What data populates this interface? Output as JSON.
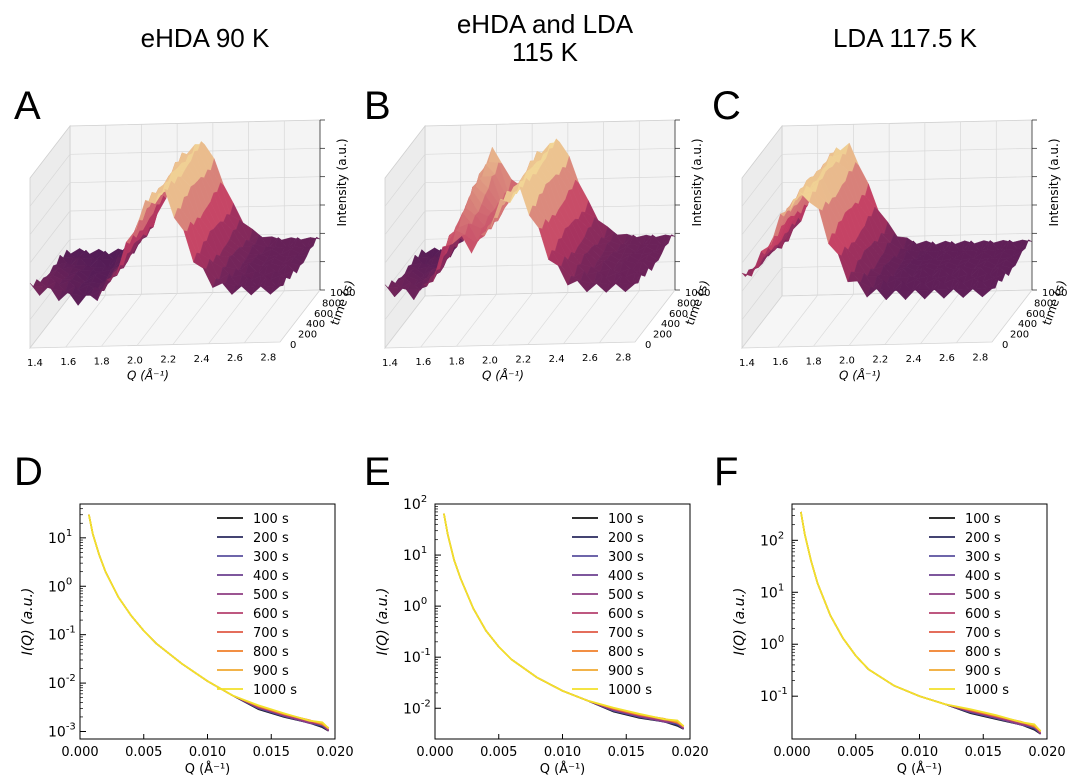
{
  "columns": [
    {
      "title_lines": [
        "eHDA 90 K"
      ]
    },
    {
      "title_lines": [
        "eHDA and LDA",
        "115 K"
      ]
    },
    {
      "title_lines": [
        "LDA 117.5 K"
      ]
    }
  ],
  "colors": {
    "legend": [
      "#111111",
      "#2a2a5e",
      "#5a4f9e",
      "#6b3f8f",
      "#8e3d82",
      "#b5406e",
      "#e05a45",
      "#f07f2a",
      "#f0a830",
      "#f2e02a"
    ],
    "surface_low": "#2b1152",
    "surface_mid": "#c23a62",
    "surface_high": "#fbf4a0"
  },
  "chart_data": [
    {
      "id": "A",
      "type": "surface3d",
      "xlabel": "Q (Å⁻¹)",
      "ylabel": "time (s)",
      "zlabel": "Intensity (a.u.)",
      "xticks": [
        "1.4",
        "1.6",
        "1.8",
        "2.0",
        "2.2",
        "2.4",
        "2.6",
        "2.8"
      ],
      "yticks": [
        "0",
        "200",
        "400",
        "600",
        "800",
        "1000"
      ],
      "xlim": [
        1.4,
        2.9
      ],
      "ylim": [
        0,
        1000
      ],
      "peak_q": 2.15,
      "shoulder_q": null,
      "low_q_level": 0.35,
      "tail_level": 0.35
    },
    {
      "id": "B",
      "type": "surface3d",
      "xlabel": "Q (Å⁻¹)",
      "ylabel": "time (s)",
      "zlabel": "Intensity (a.u.)",
      "xticks": [
        "1.4",
        "1.6",
        "1.8",
        "2.0",
        "2.2",
        "2.4",
        "2.6",
        "2.8"
      ],
      "yticks": [
        "0",
        "200",
        "400",
        "600",
        "800",
        "1000"
      ],
      "xlim": [
        1.4,
        2.9
      ],
      "ylim": [
        0,
        1000
      ],
      "peak_q": 2.15,
      "shoulder_q": 1.8,
      "low_q_level": 0.3,
      "tail_level": 0.4
    },
    {
      "id": "C",
      "type": "surface3d",
      "xlabel": "Q (Å⁻¹)",
      "ylabel": "time (s)",
      "zlabel": "Intensity (a.u.)",
      "xticks": [
        "1.4",
        "1.6",
        "1.8",
        "2.0",
        "2.2",
        "2.4",
        "2.6",
        "2.8"
      ],
      "yticks": [
        "0",
        "200",
        "400",
        "600",
        "800",
        "1000"
      ],
      "xlim": [
        1.4,
        2.9
      ],
      "ylim": [
        0,
        1000
      ],
      "peak_q": 1.75,
      "shoulder_q": null,
      "low_q_level": 0.4,
      "tail_level": 0.3
    },
    {
      "id": "D",
      "type": "line",
      "yscale": "log",
      "xlabel": "Q (Å⁻¹)",
      "ylabel": "I(Q) (a.u.)",
      "xlim": [
        0.0,
        0.02
      ],
      "ylim": [
        0.0007,
        50
      ],
      "xticks": [
        0.0,
        0.005,
        0.01,
        0.015,
        0.02
      ],
      "xtick_labels": [
        "0.000",
        "0.005",
        "0.010",
        "0.015",
        "0.020"
      ],
      "yticks": [
        0.001,
        0.01,
        0.1,
        1,
        10
      ],
      "ytick_exponents": [
        "-3",
        "-2",
        "-1",
        "0",
        "1"
      ],
      "legend_position": "upper-right",
      "series_names": [
        "100 s",
        "200 s",
        "300 s",
        "400 s",
        "500 s",
        "600 s",
        "700 s",
        "800 s",
        "900 s",
        "1000 s"
      ],
      "q": [
        0.0007,
        0.001,
        0.0015,
        0.002,
        0.003,
        0.004,
        0.005,
        0.006,
        0.008,
        0.01,
        0.012,
        0.014,
        0.016,
        0.018,
        0.019,
        0.0195
      ],
      "intensity": [
        30,
        12,
        4.5,
        2.0,
        0.6,
        0.25,
        0.12,
        0.065,
        0.025,
        0.011,
        0.0055,
        0.0032,
        0.0022,
        0.0016,
        0.0014,
        0.0011
      ]
    },
    {
      "id": "E",
      "type": "line",
      "yscale": "log",
      "xlabel": "Q (Å⁻¹)",
      "ylabel": "I(Q) (a.u.)",
      "xlim": [
        0.0,
        0.02
      ],
      "ylim": [
        0.0025,
        100
      ],
      "xticks": [
        0.0,
        0.005,
        0.01,
        0.015,
        0.02
      ],
      "xtick_labels": [
        "0.000",
        "0.005",
        "0.010",
        "0.015",
        "0.020"
      ],
      "yticks": [
        0.01,
        0.1,
        1,
        10,
        100
      ],
      "ytick_exponents": [
        "-2",
        "-1",
        "0",
        "1",
        "2"
      ],
      "legend_position": "upper-right",
      "series_names": [
        "100 s",
        "200 s",
        "300 s",
        "400 s",
        "500 s",
        "600 s",
        "700 s",
        "800 s",
        "900 s",
        "1000 s"
      ],
      "q": [
        0.0007,
        0.001,
        0.0015,
        0.002,
        0.003,
        0.004,
        0.005,
        0.006,
        0.008,
        0.01,
        0.012,
        0.014,
        0.016,
        0.018,
        0.019,
        0.0195
      ],
      "intensity": [
        65,
        25,
        8,
        3.5,
        0.9,
        0.33,
        0.16,
        0.09,
        0.04,
        0.022,
        0.014,
        0.0095,
        0.0072,
        0.0058,
        0.0052,
        0.0042
      ]
    },
    {
      "id": "F",
      "type": "line",
      "yscale": "log",
      "xlabel": "Q (Å⁻¹)",
      "ylabel": "I(Q) (a.u.)",
      "xlim": [
        0.0,
        0.02
      ],
      "ylim": [
        0.015,
        500
      ],
      "xticks": [
        0.0,
        0.005,
        0.01,
        0.015,
        0.02
      ],
      "xtick_labels": [
        "0.000",
        "0.005",
        "0.010",
        "0.015",
        "0.020"
      ],
      "yticks": [
        0.1,
        1,
        10,
        100
      ],
      "ytick_exponents": [
        "-1",
        "0",
        "1",
        "2"
      ],
      "legend_position": "upper-right",
      "series_names": [
        "100 s",
        "200 s",
        "300 s",
        "400 s",
        "500 s",
        "600 s",
        "700 s",
        "800 s",
        "900 s",
        "1000 s"
      ],
      "q": [
        0.0007,
        0.001,
        0.0015,
        0.002,
        0.003,
        0.004,
        0.005,
        0.006,
        0.008,
        0.01,
        0.012,
        0.014,
        0.016,
        0.018,
        0.019,
        0.0195
      ],
      "intensity": [
        350,
        130,
        40,
        15,
        3.6,
        1.3,
        0.6,
        0.33,
        0.16,
        0.1,
        0.07,
        0.052,
        0.04,
        0.03,
        0.026,
        0.02
      ]
    }
  ]
}
